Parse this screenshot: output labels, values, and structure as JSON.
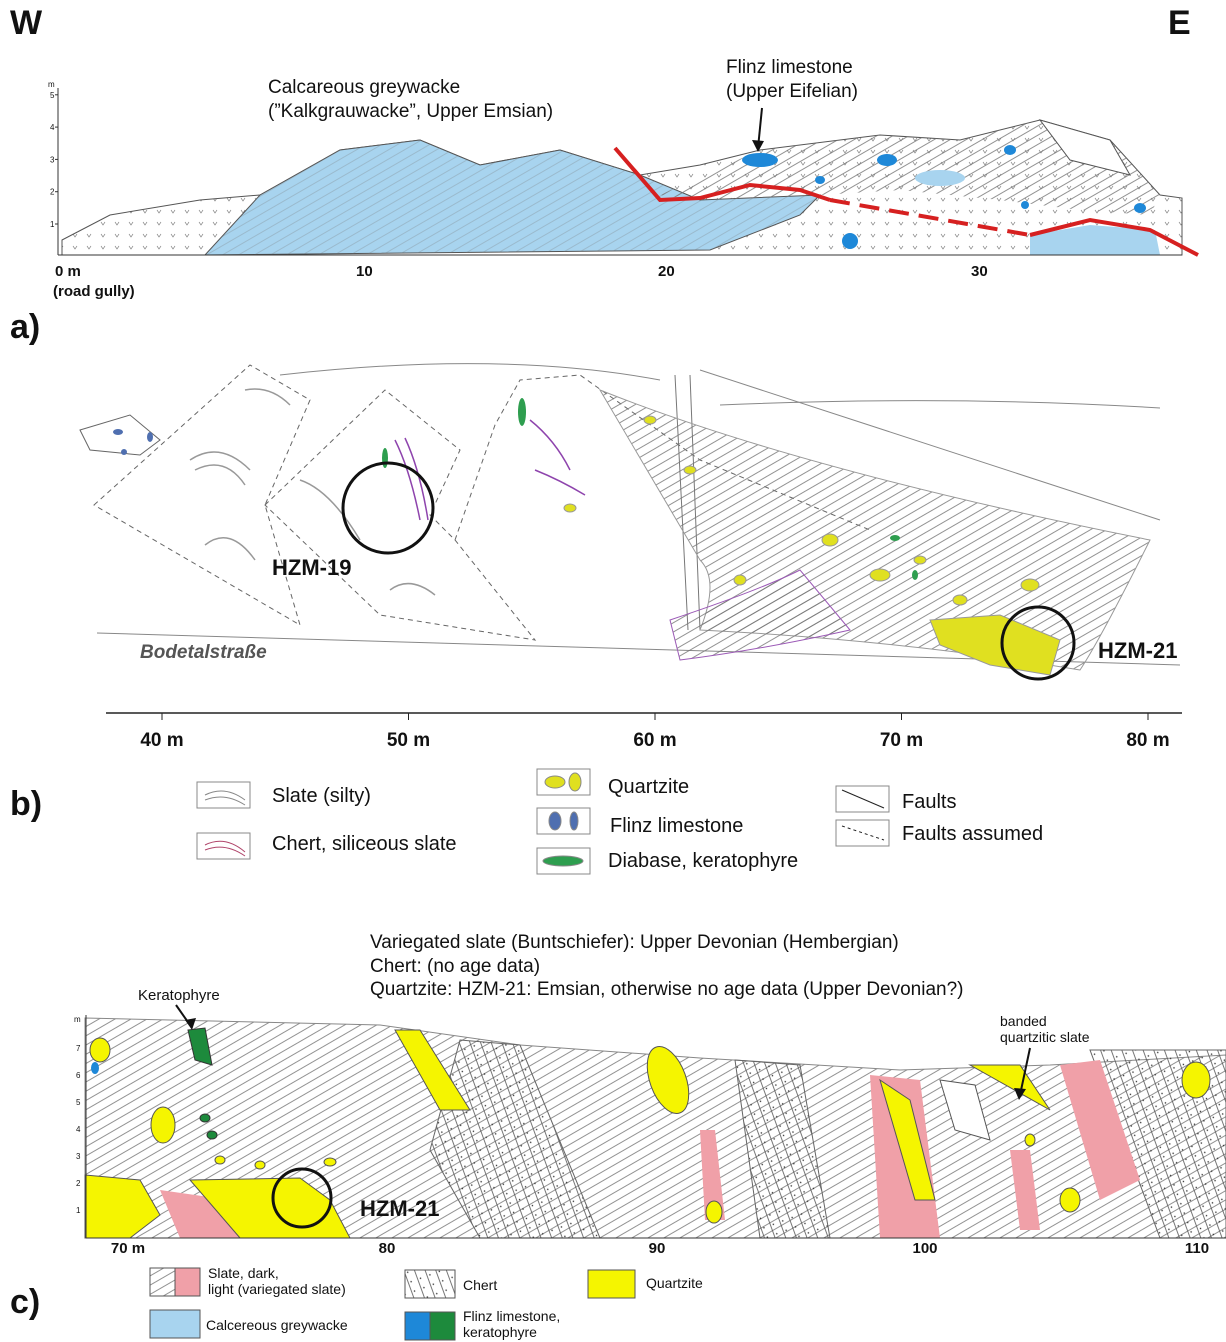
{
  "header": {
    "west": "W",
    "east": "E"
  },
  "panel_a": {
    "label": "a)",
    "y_unit": "m",
    "y_ticks": [
      "1",
      "2",
      "3",
      "4",
      "5"
    ],
    "x_labels": [
      "0 m",
      "10",
      "20",
      "30"
    ],
    "x_note": "(road gully)",
    "unit_1": [
      "Calcareous greywacke",
      "(”Kalkgrauwacke”, Upper Emsian)"
    ],
    "unit_2": [
      "Flinz limestone",
      "(Upper Eifelian)"
    ]
  },
  "panel_b": {
    "label": "b)",
    "samples": [
      "HZM-19",
      "HZM-21"
    ],
    "road": "Bodetalstraße",
    "x_labels": [
      "40 m",
      "50 m",
      "60 m",
      "70 m",
      "80 m"
    ],
    "legend": [
      "Slate (silty)",
      "Chert, siliceous slate",
      "Quartzite",
      "Flinz limestone",
      "Diabase, keratophyre",
      "Faults",
      "Faults assumed"
    ]
  },
  "panel_c": {
    "label": "c)",
    "ages": [
      "Variegated slate (Buntschiefer): Upper Devonian (Hembergian)",
      "Chert: (no age data)",
      "Quartzite: HZM-21: Emsian, otherwise no age data (Upper Devonian?)"
    ],
    "annotations": [
      "Keratophyre",
      "banded",
      "quartzitic slate"
    ],
    "sample": "HZM-21",
    "y_unit": "m",
    "y_ticks": [
      "1",
      "2",
      "3",
      "4",
      "5",
      "6",
      "7"
    ],
    "x_labels": [
      "70 m",
      "80",
      "90",
      "100",
      "110"
    ],
    "legend": [
      [
        "Slate, dark,",
        "light (variegated slate)"
      ],
      [
        "Chert"
      ],
      [
        "Quartzite"
      ],
      [
        "Calcereous greywacke"
      ],
      [
        "Flinz limestone,",
        "keratophyre"
      ]
    ]
  }
}
